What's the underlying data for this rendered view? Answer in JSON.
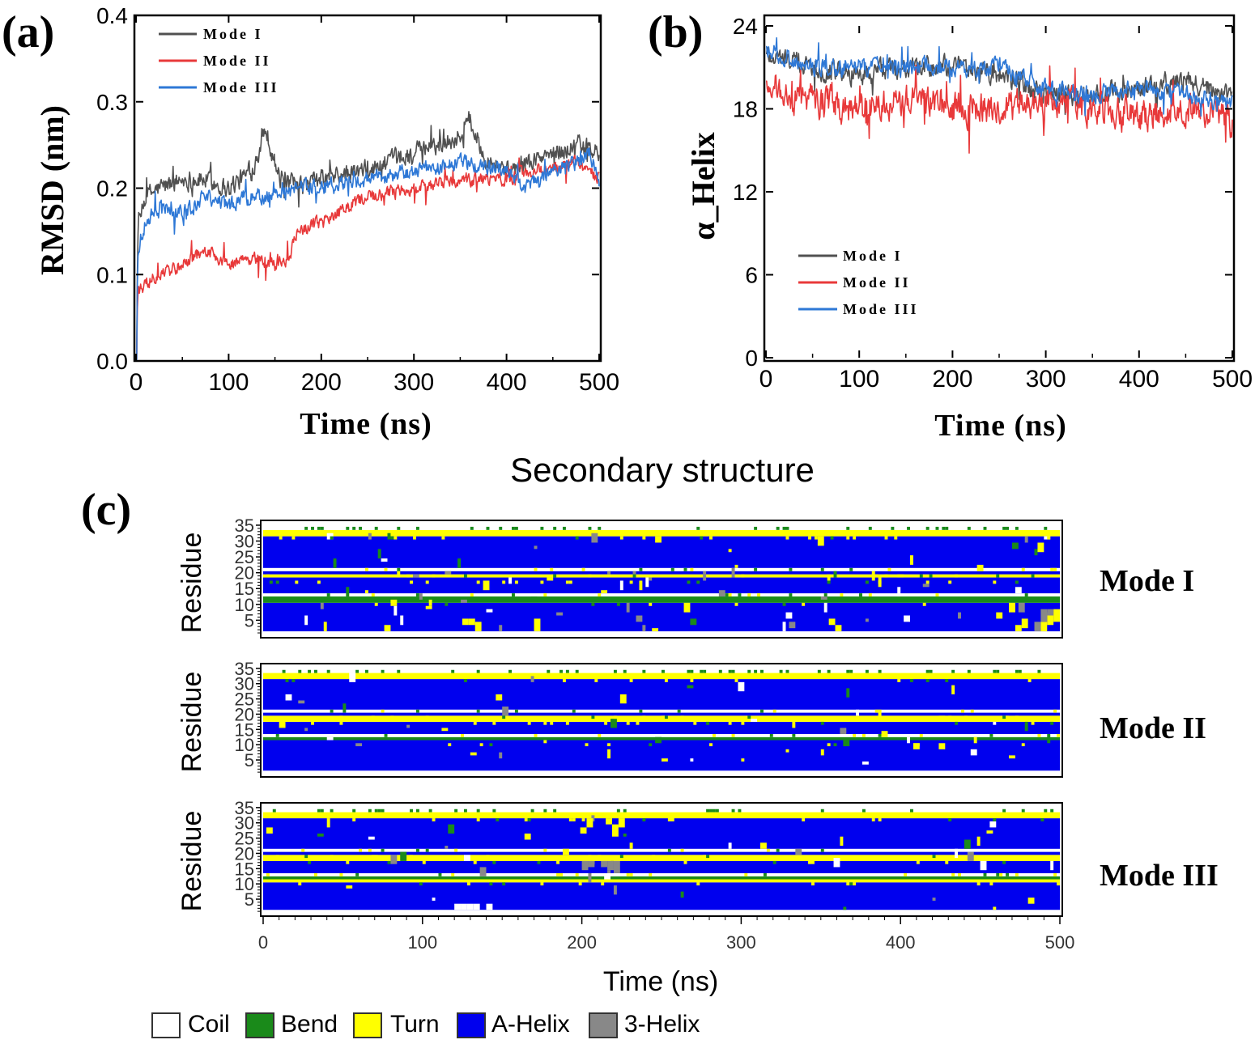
{
  "colors": {
    "mode1": "#505050",
    "mode2": "#e8393a",
    "mode3": "#2e78d6",
    "coil": "#ffffff",
    "bend": "#1a8a1a",
    "turn": "#ffff00",
    "a_helix": "#0000ee",
    "three_helix": "#888888"
  },
  "chart_data": [
    {
      "id": "a",
      "panel_label": "(a)",
      "type": "line",
      "xlabel": "Time (ns)",
      "ylabel": "RMSD (nm)",
      "xlim": [
        0,
        500
      ],
      "ylim": [
        0,
        0.4
      ],
      "xticks": [
        0,
        100,
        200,
        300,
        400,
        500
      ],
      "yticks": [
        0.0,
        0.1,
        0.2,
        0.3,
        0.4
      ],
      "ytick_labels": [
        "0.0",
        "0.1",
        "0.2",
        "0.3",
        "0.4"
      ],
      "legend_position": "top-left",
      "series": [
        {
          "name": "Mode I",
          "color": "#505050",
          "x": [
            0,
            2,
            10,
            25,
            50,
            75,
            100,
            125,
            140,
            155,
            175,
            200,
            250,
            300,
            350,
            360,
            375,
            400,
            425,
            450,
            475,
            500
          ],
          "y": [
            0.0,
            0.15,
            0.19,
            0.2,
            0.21,
            0.21,
            0.2,
            0.22,
            0.27,
            0.21,
            0.2,
            0.21,
            0.22,
            0.24,
            0.26,
            0.28,
            0.24,
            0.22,
            0.23,
            0.24,
            0.25,
            0.24
          ],
          "noise": 0.018
        },
        {
          "name": "Mode II",
          "color": "#e8393a",
          "x": [
            0,
            2,
            10,
            25,
            50,
            75,
            100,
            125,
            150,
            165,
            175,
            200,
            250,
            300,
            350,
            400,
            425,
            450,
            475,
            500
          ],
          "y": [
            0.0,
            0.08,
            0.09,
            0.1,
            0.11,
            0.13,
            0.11,
            0.12,
            0.11,
            0.12,
            0.15,
            0.16,
            0.19,
            0.2,
            0.21,
            0.21,
            0.22,
            0.22,
            0.23,
            0.21
          ],
          "noise": 0.012
        },
        {
          "name": "Mode III",
          "color": "#2e78d6",
          "x": [
            0,
            2,
            10,
            25,
            50,
            75,
            100,
            125,
            150,
            175,
            200,
            250,
            300,
            350,
            400,
            420,
            450,
            475,
            490,
            500
          ],
          "y": [
            0.0,
            0.13,
            0.16,
            0.18,
            0.17,
            0.19,
            0.18,
            0.19,
            0.19,
            0.2,
            0.2,
            0.21,
            0.22,
            0.23,
            0.22,
            0.2,
            0.22,
            0.23,
            0.24,
            0.21
          ],
          "noise": 0.014
        }
      ]
    },
    {
      "id": "b",
      "panel_label": "(b)",
      "type": "line",
      "xlabel": "Time (ns)",
      "ylabel": "α_Helix",
      "xlim": [
        0,
        500
      ],
      "ylim": [
        0,
        24
      ],
      "xticks": [
        0,
        100,
        200,
        300,
        400,
        500
      ],
      "yticks": [
        0,
        6,
        12,
        18,
        24
      ],
      "ytick_labels": [
        "0",
        "6",
        "12",
        "18",
        "24"
      ],
      "legend_position": "lower-left",
      "series": [
        {
          "name": "Mode I",
          "color": "#505050",
          "x": [
            0,
            25,
            50,
            100,
            150,
            200,
            250,
            300,
            350,
            400,
            450,
            500
          ],
          "y": [
            22,
            21.5,
            21,
            20.5,
            21,
            21,
            20.5,
            19,
            19,
            19.5,
            20,
            19
          ],
          "noise": 1.2
        },
        {
          "name": "Mode II",
          "color": "#e8393a",
          "x": [
            0,
            25,
            50,
            100,
            150,
            200,
            250,
            300,
            350,
            400,
            450,
            500
          ],
          "y": [
            20,
            19,
            18.5,
            18,
            18.5,
            18,
            18,
            18.5,
            18,
            17.5,
            18,
            17
          ],
          "noise": 1.8
        },
        {
          "name": "Mode III",
          "color": "#2e78d6",
          "x": [
            0,
            25,
            50,
            100,
            150,
            200,
            250,
            300,
            350,
            400,
            450,
            500
          ],
          "y": [
            22.5,
            21.5,
            21,
            21,
            21,
            21,
            21,
            19.5,
            19,
            19.5,
            19,
            18.5
          ],
          "noise": 1.0
        }
      ]
    },
    {
      "id": "c",
      "panel_label": "(c)",
      "type": "heatmap",
      "title": "Secondary structure",
      "xlabel": "Time (ns)",
      "ylabel": "Residue",
      "xlim": [
        0,
        500
      ],
      "ylim": [
        0,
        35
      ],
      "xticks": [
        0,
        100,
        200,
        300,
        400,
        500
      ],
      "yticks": [
        5,
        10,
        15,
        20,
        25,
        30,
        35
      ],
      "categories": [
        "Coil",
        "Bend",
        "Turn",
        "A-Helix",
        "3-Helix"
      ],
      "legend_position": "bottom",
      "panels": [
        {
          "name": "Mode I",
          "structure_residues": [
            [
              "coil",
              1,
              1
            ],
            [
              "a_helix",
              2,
              10
            ],
            [
              "bend",
              11,
              12
            ],
            [
              "coil",
              13,
              13
            ],
            [
              "a_helix",
              14,
              18
            ],
            [
              "turn",
              19,
              19
            ],
            [
              "a_helix",
              20,
              20
            ],
            [
              "coil",
              21,
              21
            ],
            [
              "a_helix",
              22,
              31
            ],
            [
              "turn",
              32,
              33
            ],
            [
              "coil",
              34,
              35
            ]
          ],
          "disorder": 0.06
        },
        {
          "name": "Mode II",
          "structure_residues": [
            [
              "coil",
              1,
              1
            ],
            [
              "a_helix",
              2,
              11
            ],
            [
              "bend",
              12,
              12
            ],
            [
              "coil",
              13,
              13
            ],
            [
              "a_helix",
              14,
              17
            ],
            [
              "turn",
              18,
              19
            ],
            [
              "a_helix",
              20,
              20
            ],
            [
              "coil",
              21,
              21
            ],
            [
              "a_helix",
              22,
              31
            ],
            [
              "turn",
              32,
              33
            ],
            [
              "coil",
              34,
              35
            ]
          ],
          "disorder": 0.02
        },
        {
          "name": "Mode III",
          "structure_residues": [
            [
              "coil",
              1,
              1
            ],
            [
              "a_helix",
              2,
              10
            ],
            [
              "turn",
              11,
              11
            ],
            [
              "bend",
              12,
              12
            ],
            [
              "coil",
              13,
              13
            ],
            [
              "a_helix",
              14,
              17
            ],
            [
              "turn",
              18,
              19
            ],
            [
              "a_helix",
              20,
              20
            ],
            [
              "coil",
              21,
              21
            ],
            [
              "a_helix",
              22,
              31
            ],
            [
              "turn",
              32,
              33
            ],
            [
              "coil",
              34,
              35
            ]
          ],
          "disorder": 0.03
        }
      ]
    }
  ]
}
